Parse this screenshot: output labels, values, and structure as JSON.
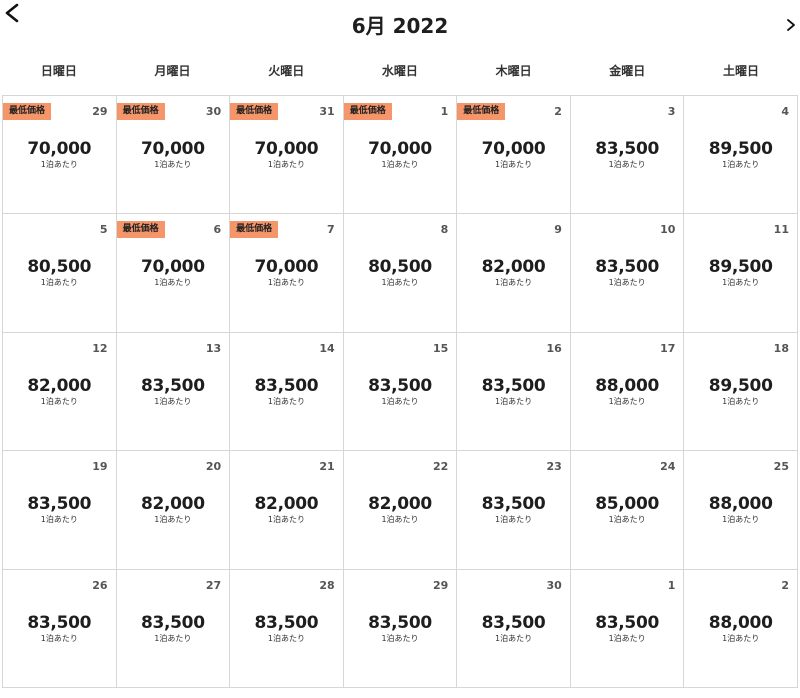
{
  "header": {
    "title": "6月 2022",
    "prev_icon": "chevron-left-icon",
    "next_icon": "chevron-right-icon"
  },
  "weekdays": [
    "日曜日",
    "月曜日",
    "火曜日",
    "水曜日",
    "木曜日",
    "金曜日",
    "土曜日"
  ],
  "badge_color": "#f4956a",
  "days": [
    {
      "day": "29",
      "price": "70,000",
      "unit": "1泊あたり",
      "badge": "最低価格"
    },
    {
      "day": "30",
      "price": "70,000",
      "unit": "1泊あたり",
      "badge": "最低価格"
    },
    {
      "day": "31",
      "price": "70,000",
      "unit": "1泊あたり",
      "badge": "最低価格"
    },
    {
      "day": "1",
      "price": "70,000",
      "unit": "1泊あたり",
      "badge": "最低価格"
    },
    {
      "day": "2",
      "price": "70,000",
      "unit": "1泊あたり",
      "badge": "最低価格"
    },
    {
      "day": "3",
      "price": "83,500",
      "unit": "1泊あたり",
      "badge": ""
    },
    {
      "day": "4",
      "price": "89,500",
      "unit": "1泊あたり",
      "badge": ""
    },
    {
      "day": "5",
      "price": "80,500",
      "unit": "1泊あたり",
      "badge": ""
    },
    {
      "day": "6",
      "price": "70,000",
      "unit": "1泊あたり",
      "badge": "最低価格"
    },
    {
      "day": "7",
      "price": "70,000",
      "unit": "1泊あたり",
      "badge": "最低価格"
    },
    {
      "day": "8",
      "price": "80,500",
      "unit": "1泊あたり",
      "badge": ""
    },
    {
      "day": "9",
      "price": "82,000",
      "unit": "1泊あたり",
      "badge": ""
    },
    {
      "day": "10",
      "price": "83,500",
      "unit": "1泊あたり",
      "badge": ""
    },
    {
      "day": "11",
      "price": "89,500",
      "unit": "1泊あたり",
      "badge": ""
    },
    {
      "day": "12",
      "price": "82,000",
      "unit": "1泊あたり",
      "badge": ""
    },
    {
      "day": "13",
      "price": "83,500",
      "unit": "1泊あたり",
      "badge": ""
    },
    {
      "day": "14",
      "price": "83,500",
      "unit": "1泊あたり",
      "badge": ""
    },
    {
      "day": "15",
      "price": "83,500",
      "unit": "1泊あたり",
      "badge": ""
    },
    {
      "day": "16",
      "price": "83,500",
      "unit": "1泊あたり",
      "badge": ""
    },
    {
      "day": "17",
      "price": "88,000",
      "unit": "1泊あたり",
      "badge": ""
    },
    {
      "day": "18",
      "price": "89,500",
      "unit": "1泊あたり",
      "badge": ""
    },
    {
      "day": "19",
      "price": "83,500",
      "unit": "1泊あたり",
      "badge": ""
    },
    {
      "day": "20",
      "price": "82,000",
      "unit": "1泊あたり",
      "badge": ""
    },
    {
      "day": "21",
      "price": "82,000",
      "unit": "1泊あたり",
      "badge": ""
    },
    {
      "day": "22",
      "price": "82,000",
      "unit": "1泊あたり",
      "badge": ""
    },
    {
      "day": "23",
      "price": "83,500",
      "unit": "1泊あたり",
      "badge": ""
    },
    {
      "day": "24",
      "price": "85,000",
      "unit": "1泊あたり",
      "badge": ""
    },
    {
      "day": "25",
      "price": "88,000",
      "unit": "1泊あたり",
      "badge": ""
    },
    {
      "day": "26",
      "price": "83,500",
      "unit": "1泊あたり",
      "badge": ""
    },
    {
      "day": "27",
      "price": "83,500",
      "unit": "1泊あたり",
      "badge": ""
    },
    {
      "day": "28",
      "price": "83,500",
      "unit": "1泊あたり",
      "badge": ""
    },
    {
      "day": "29",
      "price": "83,500",
      "unit": "1泊あたり",
      "badge": ""
    },
    {
      "day": "30",
      "price": "83,500",
      "unit": "1泊あたり",
      "badge": ""
    },
    {
      "day": "1",
      "price": "83,500",
      "unit": "1泊あたり",
      "badge": ""
    },
    {
      "day": "2",
      "price": "88,000",
      "unit": "1泊あたり",
      "badge": ""
    }
  ]
}
